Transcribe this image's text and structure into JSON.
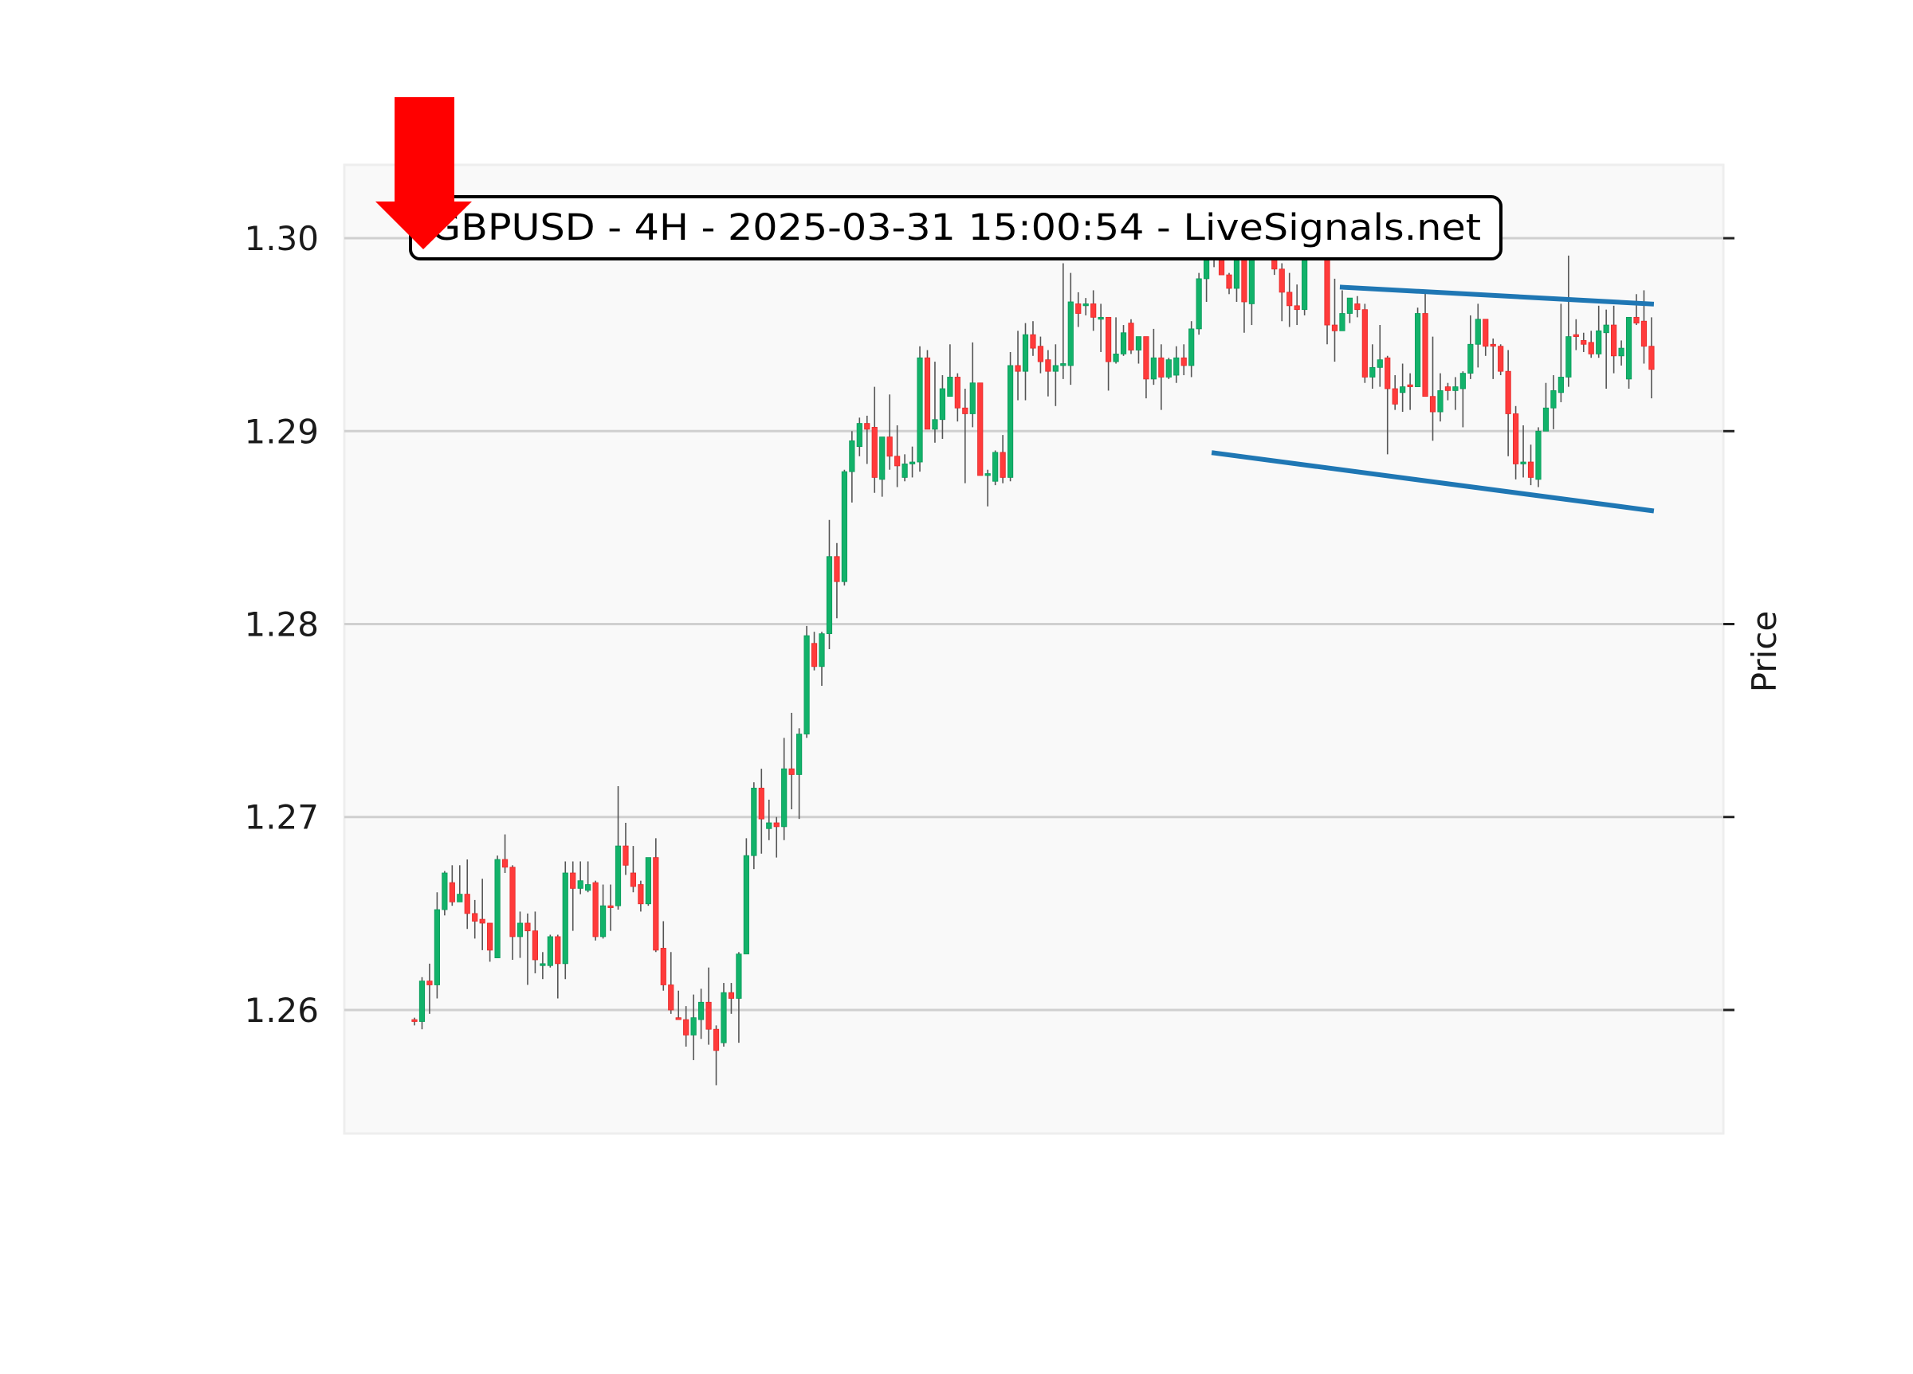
{
  "chart_data": {
    "type": "candlestick",
    "title": "GBPUSD - 4H - 2025-03-31 15:00:54 - LiveSignals.net",
    "xlabel": "",
    "ylabel": "Price",
    "ylim": [
      1.2536,
      1.3038
    ],
    "grid": true,
    "y_ticks": [
      {
        "value": 1.26,
        "label": "1.26"
      },
      {
        "value": 1.27,
        "label": "1.27"
      },
      {
        "value": 1.28,
        "label": "1.28"
      },
      {
        "value": 1.29,
        "label": "1.29"
      },
      {
        "value": 1.3,
        "label": "1.30"
      }
    ],
    "ohlc_fields": [
      "open",
      "high",
      "low",
      "close"
    ],
    "ohlc": [
      [
        1.2595,
        1.2596,
        1.2592,
        1.2594
      ],
      [
        1.2594,
        1.2617,
        1.259,
        1.2615
      ],
      [
        1.2615,
        1.2624,
        1.2598,
        1.2613
      ],
      [
        1.2613,
        1.2661,
        1.2606,
        1.2652
      ],
      [
        1.2652,
        1.2672,
        1.2649,
        1.2671
      ],
      [
        1.2666,
        1.2675,
        1.2654,
        1.2656
      ],
      [
        1.2656,
        1.2675,
        1.2656,
        1.266
      ],
      [
        1.266,
        1.2678,
        1.2642,
        1.265
      ],
      [
        1.265,
        1.2657,
        1.2637,
        1.2646
      ],
      [
        1.2647,
        1.2668,
        1.2631,
        1.2645
      ],
      [
        1.2645,
        1.2645,
        1.2625,
        1.2631
      ],
      [
        1.2627,
        1.268,
        1.2627,
        1.2678
      ],
      [
        1.2678,
        1.2691,
        1.2671,
        1.2674
      ],
      [
        1.2674,
        1.2675,
        1.2626,
        1.2638
      ],
      [
        1.2638,
        1.2651,
        1.2627,
        1.2645
      ],
      [
        1.2645,
        1.265,
        1.2613,
        1.2641
      ],
      [
        1.2641,
        1.2651,
        1.2619,
        1.2626
      ],
      [
        1.2623,
        1.263,
        1.2616,
        1.2624
      ],
      [
        1.2623,
        1.2639,
        1.2622,
        1.2638
      ],
      [
        1.2638,
        1.2639,
        1.2606,
        1.2624
      ],
      [
        1.2624,
        1.2677,
        1.2616,
        1.2671
      ],
      [
        1.2671,
        1.2677,
        1.2641,
        1.2663
      ],
      [
        1.2663,
        1.2677,
        1.266,
        1.2667
      ],
      [
        1.2662,
        1.2677,
        1.2661,
        1.2665
      ],
      [
        1.2666,
        1.2667,
        1.2636,
        1.2638
      ],
      [
        1.2638,
        1.2665,
        1.2637,
        1.2654
      ],
      [
        1.2654,
        1.2665,
        1.2641,
        1.2653
      ],
      [
        1.2654,
        1.2716,
        1.2652,
        1.2685
      ],
      [
        1.2685,
        1.2697,
        1.267,
        1.2675
      ],
      [
        1.2671,
        1.2685,
        1.2661,
        1.2664
      ],
      [
        1.2665,
        1.2667,
        1.2651,
        1.2655
      ],
      [
        1.2655,
        1.2679,
        1.2654,
        1.2679
      ],
      [
        1.2679,
        1.2689,
        1.263,
        1.2631
      ],
      [
        1.2632,
        1.2646,
        1.261,
        1.2613
      ],
      [
        1.2613,
        1.263,
        1.2598,
        1.26
      ],
      [
        1.2596,
        1.261,
        1.2595,
        1.2595
      ],
      [
        1.2595,
        1.2602,
        1.2581,
        1.2587
      ],
      [
        1.2587,
        1.2608,
        1.2574,
        1.2596
      ],
      [
        1.2595,
        1.2611,
        1.2585,
        1.2604
      ],
      [
        1.2604,
        1.2622,
        1.2582,
        1.259
      ],
      [
        1.259,
        1.2592,
        1.2561,
        1.2579
      ],
      [
        1.2583,
        1.2614,
        1.2581,
        1.2609
      ],
      [
        1.2609,
        1.2614,
        1.2598,
        1.2606
      ],
      [
        1.2606,
        1.263,
        1.2583,
        1.2629
      ],
      [
        1.2629,
        1.2689,
        1.2629,
        1.268
      ],
      [
        1.268,
        1.2718,
        1.2673,
        1.2715
      ],
      [
        1.2715,
        1.2725,
        1.2681,
        1.2699
      ],
      [
        1.2694,
        1.2709,
        1.2688,
        1.2697
      ],
      [
        1.2697,
        1.27,
        1.2679,
        1.2695
      ],
      [
        1.2695,
        1.2741,
        1.2688,
        1.2725
      ],
      [
        1.2725,
        1.2754,
        1.2704,
        1.2722
      ],
      [
        1.2722,
        1.2746,
        1.2699,
        1.2743
      ],
      [
        1.2743,
        1.2799,
        1.2741,
        1.2794
      ],
      [
        1.279,
        1.2796,
        1.2776,
        1.2778
      ],
      [
        1.2778,
        1.2796,
        1.2768,
        1.2795
      ],
      [
        1.2795,
        1.2854,
        1.2787,
        1.2835
      ],
      [
        1.2835,
        1.2842,
        1.2803,
        1.2822
      ],
      [
        1.2822,
        1.288,
        1.282,
        1.2879
      ],
      [
        1.2879,
        1.29,
        1.2863,
        1.2895
      ],
      [
        1.2892,
        1.2907,
        1.2887,
        1.2904
      ],
      [
        1.2904,
        1.2908,
        1.2883,
        1.2901
      ],
      [
        1.2902,
        1.2923,
        1.2868,
        1.2876
      ],
      [
        1.2875,
        1.2897,
        1.2866,
        1.2897
      ],
      [
        1.2897,
        1.2919,
        1.288,
        1.2887
      ],
      [
        1.2887,
        1.2903,
        1.2871,
        1.2882
      ],
      [
        1.2876,
        1.2888,
        1.2874,
        1.2883
      ],
      [
        1.2883,
        1.2892,
        1.2876,
        1.2884
      ],
      [
        1.2884,
        1.2944,
        1.2879,
        1.2938
      ],
      [
        1.2938,
        1.2942,
        1.2901,
        1.2901
      ],
      [
        1.2901,
        1.2936,
        1.2894,
        1.2906
      ],
      [
        1.2906,
        1.2929,
        1.2896,
        1.2922
      ],
      [
        1.2918,
        1.2945,
        1.2918,
        1.2928
      ],
      [
        1.2928,
        1.293,
        1.2905,
        1.2912
      ],
      [
        1.2912,
        1.2922,
        1.2873,
        1.2909
      ],
      [
        1.2909,
        1.2946,
        1.2902,
        1.2925
      ],
      [
        1.2925,
        1.2925,
        1.2877,
        1.2877
      ],
      [
        1.2877,
        1.288,
        1.2861,
        1.2878
      ],
      [
        1.2874,
        1.289,
        1.2872,
        1.2889
      ],
      [
        1.2889,
        1.2898,
        1.2873,
        1.2876
      ],
      [
        1.2876,
        1.2941,
        1.2874,
        1.2934
      ],
      [
        1.2934,
        1.2952,
        1.2916,
        1.2931
      ],
      [
        1.2931,
        1.2956,
        1.2916,
        1.295
      ],
      [
        1.295,
        1.2957,
        1.2939,
        1.2943
      ],
      [
        1.2944,
        1.2949,
        1.293,
        1.2936
      ],
      [
        1.2937,
        1.2942,
        1.2918,
        1.2931
      ],
      [
        1.2931,
        1.2945,
        1.2913,
        1.2934
      ],
      [
        1.2934,
        1.2987,
        1.2927,
        1.2935
      ],
      [
        1.2934,
        1.2982,
        1.2924,
        1.2967
      ],
      [
        1.2966,
        1.2972,
        1.2954,
        1.2961
      ],
      [
        1.2965,
        1.2969,
        1.296,
        1.2966
      ],
      [
        1.2966,
        1.2973,
        1.2952,
        1.2959
      ],
      [
        1.2958,
        1.2966,
        1.2941,
        1.2959
      ],
      [
        1.2959,
        1.2959,
        1.2921,
        1.2936
      ],
      [
        1.2936,
        1.2959,
        1.2935,
        1.294
      ],
      [
        1.294,
        1.2955,
        1.2939,
        1.2951
      ],
      [
        1.2956,
        1.2958,
        1.294,
        1.2942
      ],
      [
        1.2942,
        1.2949,
        1.2935,
        1.2949
      ],
      [
        1.2949,
        1.2949,
        1.2917,
        1.2927
      ],
      [
        1.2927,
        1.2953,
        1.2924,
        1.2938
      ],
      [
        1.2938,
        1.2945,
        1.2911,
        1.2928
      ],
      [
        1.2928,
        1.2938,
        1.2927,
        1.2937
      ],
      [
        1.2929,
        1.2944,
        1.2925,
        1.2938
      ],
      [
        1.2938,
        1.2945,
        1.2929,
        1.2934
      ],
      [
        1.2934,
        1.2957,
        1.2928,
        1.2953
      ],
      [
        1.2953,
        1.2982,
        1.295,
        1.2979
      ],
      [
        1.2979,
        1.2998,
        1.2967,
        1.2992
      ],
      [
        1.2992,
        1.3004,
        1.2985,
        1.2995
      ],
      [
        1.2998,
        1.3003,
        1.2981,
        1.2981
      ],
      [
        1.2981,
        1.2982,
        1.2971,
        1.2974
      ],
      [
        1.2974,
        1.3002,
        1.2967,
        1.2995
      ],
      [
        1.2998,
        1.3004,
        1.2951,
        1.2967
      ],
      [
        1.2966,
        1.3006,
        1.2955,
        1.2998
      ],
      [
        1.2998,
        1.3018,
        1.2995,
        1.301
      ],
      [
        1.301,
        1.3015,
        1.2998,
        1.3004
      ],
      [
        1.3004,
        1.3008,
        1.2981,
        1.2984
      ],
      [
        1.2984,
        1.2987,
        1.2957,
        1.2972
      ],
      [
        1.2972,
        1.2982,
        1.2954,
        1.2965
      ],
      [
        1.2965,
        1.2976,
        1.2955,
        1.2963
      ],
      [
        1.2963,
        1.3008,
        1.296,
        1.3
      ],
      [
        1.3,
        1.302,
        1.2995,
        1.3012
      ],
      [
        1.3012,
        1.3018,
        1.3003,
        1.301
      ],
      [
        1.301,
        1.3014,
        1.2945,
        1.2955
      ],
      [
        1.2955,
        1.2979,
        1.2936,
        1.2952
      ],
      [
        1.2952,
        1.2973,
        1.2952,
        1.2961
      ],
      [
        1.2961,
        1.2969,
        1.2956,
        1.2969
      ],
      [
        1.2966,
        1.297,
        1.2959,
        1.2963
      ],
      [
        1.2963,
        1.2966,
        1.2925,
        1.2928
      ],
      [
        1.2928,
        1.2945,
        1.2922,
        1.2933
      ],
      [
        1.2933,
        1.2955,
        1.2923,
        1.2937
      ],
      [
        1.2938,
        1.2939,
        1.2888,
        1.2922
      ],
      [
        1.2922,
        1.2929,
        1.2911,
        1.2914
      ],
      [
        1.292,
        1.2935,
        1.291,
        1.2923
      ],
      [
        1.2924,
        1.293,
        1.2911,
        1.2923
      ],
      [
        1.2923,
        1.2964,
        1.2923,
        1.2961
      ],
      [
        1.2961,
        1.2973,
        1.2918,
        1.2918
      ],
      [
        1.2918,
        1.2949,
        1.2895,
        1.291
      ],
      [
        1.291,
        1.293,
        1.2905,
        1.2921
      ],
      [
        1.2923,
        1.2925,
        1.2916,
        1.2921
      ],
      [
        1.2921,
        1.2928,
        1.2911,
        1.2923
      ],
      [
        1.2922,
        1.2931,
        1.2902,
        1.293
      ],
      [
        1.293,
        1.296,
        1.2927,
        1.2945
      ],
      [
        1.2945,
        1.2966,
        1.2933,
        1.2958
      ],
      [
        1.2958,
        1.2958,
        1.2939,
        1.2944
      ],
      [
        1.2945,
        1.2948,
        1.2927,
        1.2944
      ],
      [
        1.2944,
        1.2945,
        1.2929,
        1.2931
      ],
      [
        1.2931,
        1.2942,
        1.2887,
        1.2909
      ],
      [
        1.2909,
        1.2913,
        1.2875,
        1.2883
      ],
      [
        1.2883,
        1.2903,
        1.2876,
        1.2884
      ],
      [
        1.2884,
        1.2893,
        1.2872,
        1.2876
      ],
      [
        1.2875,
        1.2902,
        1.2871,
        1.29
      ],
      [
        1.29,
        1.2925,
        1.29,
        1.2912
      ],
      [
        1.2912,
        1.2929,
        1.2901,
        1.2921
      ],
      [
        1.292,
        1.2966,
        1.2915,
        1.2928
      ],
      [
        1.2928,
        1.2991,
        1.2923,
        1.2949
      ],
      [
        1.295,
        1.2958,
        1.2942,
        1.2949
      ],
      [
        1.2947,
        1.2951,
        1.2941,
        1.2945
      ],
      [
        1.2946,
        1.2952,
        1.2938,
        1.294
      ],
      [
        1.294,
        1.2965,
        1.2938,
        1.2952
      ],
      [
        1.2951,
        1.2963,
        1.2922,
        1.2955
      ],
      [
        1.2955,
        1.2965,
        1.293,
        1.2939
      ],
      [
        1.2939,
        1.2947,
        1.2934,
        1.2943
      ],
      [
        1.2927,
        1.2959,
        1.2922,
        1.2959
      ],
      [
        1.2959,
        1.2971,
        1.2955,
        1.2956
      ],
      [
        1.2957,
        1.2973,
        1.2935,
        1.2944
      ],
      [
        1.2944,
        1.2959,
        1.2917,
        1.2932
      ]
    ],
    "trendlines": [
      {
        "role": "upper",
        "start_candle": 123,
        "start_price": 1.29746,
        "end_candle": 164,
        "end_price": 1.29659
      },
      {
        "role": "lower",
        "start_candle": 106,
        "start_price": 1.28887,
        "end_candle": 164,
        "end_price": 1.28588
      }
    ],
    "signal_marker": {
      "type": "arrow",
      "direction": "down"
    }
  },
  "colors": {
    "up": "#12b26a",
    "down": "#ff3b3b",
    "wick": "#555555",
    "trendline": "#1f77b4",
    "signal_arrow": "#ff0000",
    "plot_background": "#f9f9f9",
    "grid": "#d0d0d0"
  }
}
